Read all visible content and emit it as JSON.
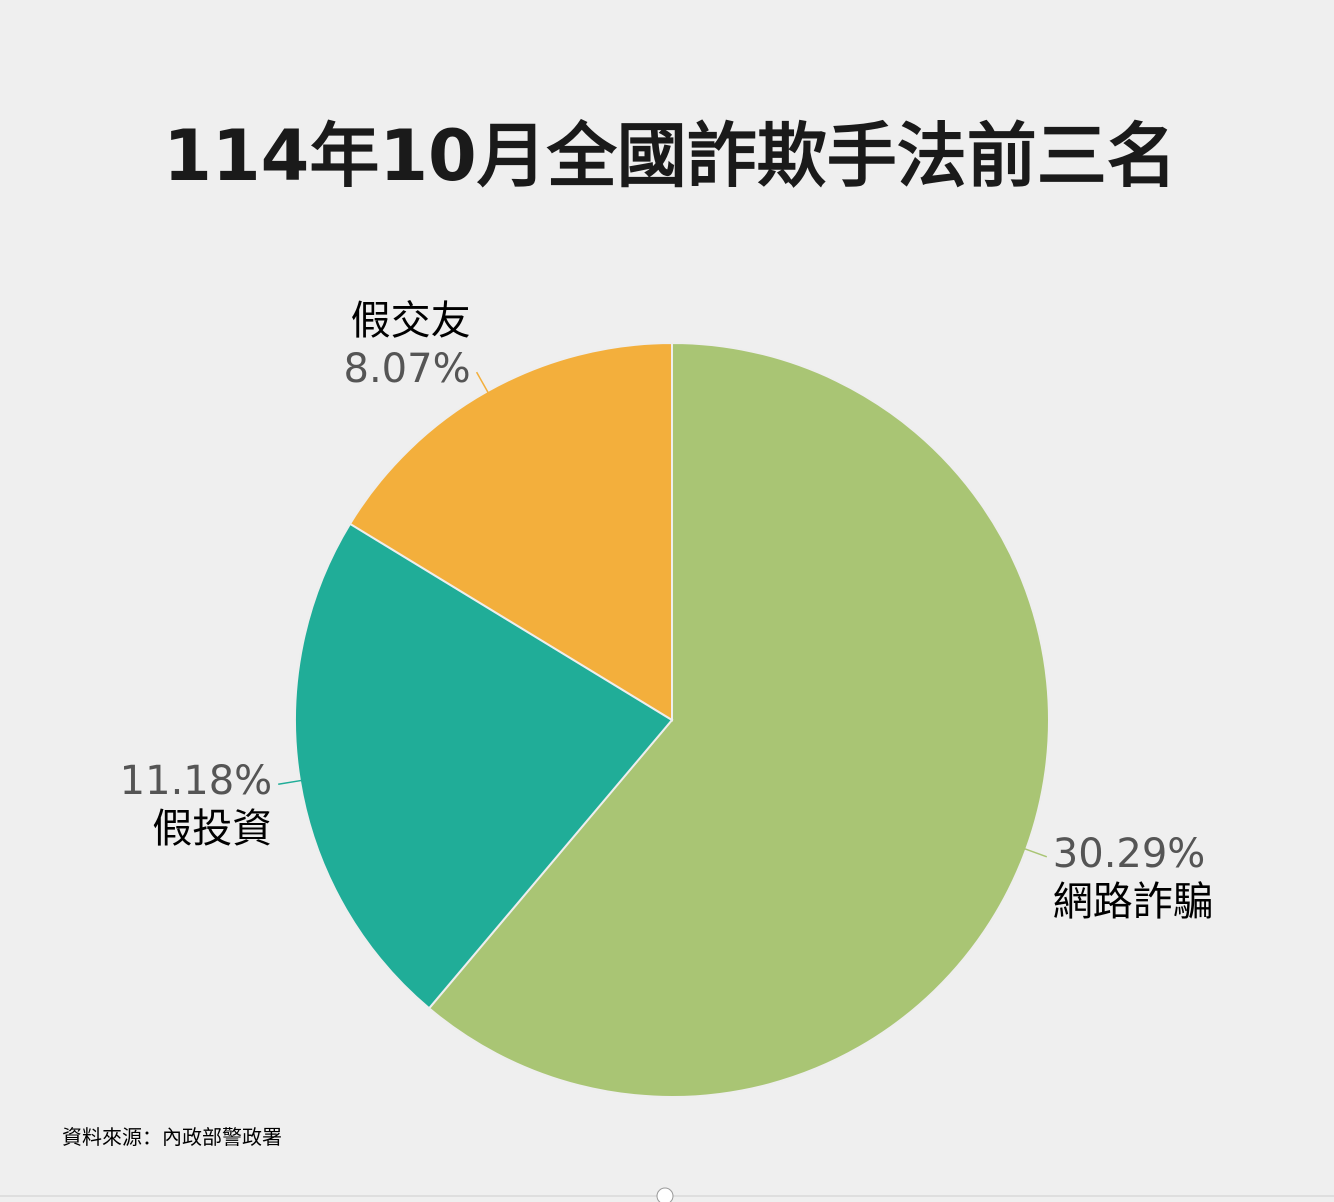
{
  "chart_data": {
    "type": "pie",
    "title": "114年10月全國詐欺手法前三名",
    "categories": [
      "網路詐騙",
      "假投資",
      "假交友"
    ],
    "values": [
      30.29,
      11.18,
      8.07
    ],
    "value_labels": [
      "30.29%",
      "11.18%",
      "8.07%"
    ],
    "colors": [
      "#a9c574",
      "#20ad98",
      "#f3af3c"
    ],
    "source": "資料來源：內政部警政署"
  }
}
